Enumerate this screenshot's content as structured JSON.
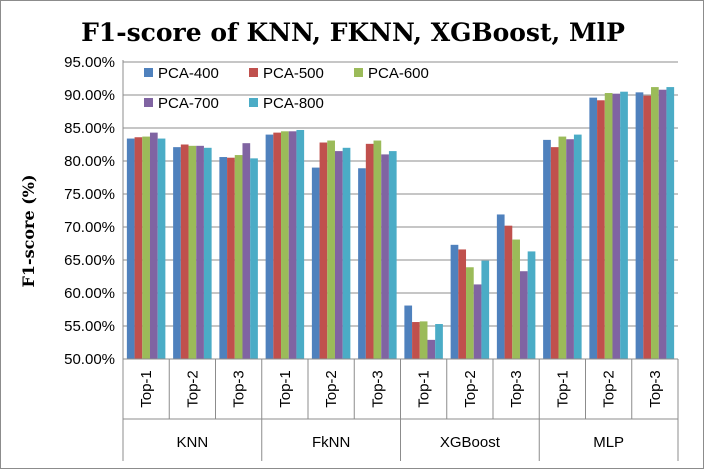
{
  "chart_data": {
    "type": "bar",
    "title": "F1-score of KNN, FKNN, XGBoost, MlP",
    "ylabel": "F1-score (%)",
    "xlabel": "",
    "ylim": [
      50,
      95
    ],
    "yticks": [
      "50.00%",
      "55.00%",
      "60.00%",
      "65.00%",
      "70.00%",
      "75.00%",
      "80.00%",
      "85.00%",
      "90.00%",
      "95.00%"
    ],
    "grid": true,
    "legend_position": "top-left",
    "groups": [
      {
        "name": "KNN",
        "categories": [
          "Top-1",
          "Top-2",
          "Top-3"
        ]
      },
      {
        "name": "FkNN",
        "categories": [
          "Top-1",
          "Top-2",
          "Top-3"
        ]
      },
      {
        "name": "XGBoost",
        "categories": [
          "Top-1",
          "Top-2",
          "Top-3"
        ]
      },
      {
        "name": "MLP",
        "categories": [
          "Top-1",
          "Top-2",
          "Top-3"
        ]
      }
    ],
    "series": [
      {
        "name": "PCA-400",
        "color": "#4f81bd",
        "values": [
          83.4,
          82.1,
          80.6,
          84.0,
          79.0,
          78.9,
          58.1,
          67.3,
          71.9,
          83.2,
          89.6,
          90.4
        ]
      },
      {
        "name": "PCA-500",
        "color": "#c0504d",
        "values": [
          83.6,
          82.5,
          80.5,
          84.3,
          82.8,
          82.6,
          55.6,
          66.6,
          70.2,
          82.1,
          89.2,
          89.9
        ]
      },
      {
        "name": "PCA-600",
        "color": "#9bbb59",
        "values": [
          83.7,
          82.3,
          80.9,
          84.5,
          83.1,
          83.1,
          55.7,
          63.9,
          68.1,
          83.7,
          90.3,
          91.2
        ]
      },
      {
        "name": "PCA-700",
        "color": "#8064a2",
        "values": [
          84.3,
          82.3,
          82.7,
          84.5,
          81.5,
          81.0,
          52.9,
          61.3,
          63.3,
          83.3,
          90.2,
          90.8
        ]
      },
      {
        "name": "PCA-800",
        "color": "#4bacc6",
        "values": [
          83.4,
          82.0,
          80.4,
          84.7,
          82.0,
          81.5,
          55.3,
          64.9,
          66.3,
          84.0,
          90.5,
          91.2
        ]
      }
    ]
  }
}
